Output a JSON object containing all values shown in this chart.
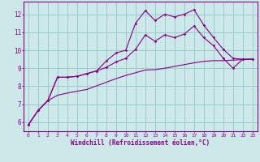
{
  "xlabel": "Windchill (Refroidissement éolien,°C)",
  "xlim": [
    -0.5,
    23.5
  ],
  "ylim": [
    5.5,
    12.7
  ],
  "yticks": [
    6,
    7,
    8,
    9,
    10,
    11,
    12
  ],
  "xticks": [
    0,
    1,
    2,
    3,
    4,
    5,
    6,
    7,
    8,
    9,
    10,
    11,
    12,
    13,
    14,
    15,
    16,
    17,
    18,
    19,
    20,
    21,
    22,
    23
  ],
  "background_color": "#cce8e8",
  "line_color": "#880088",
  "grid_color": "#99cccc",
  "curve1_y": [
    5.85,
    6.65,
    7.2,
    8.5,
    8.5,
    8.55,
    8.7,
    8.85,
    9.4,
    9.85,
    10.0,
    11.5,
    12.2,
    11.65,
    12.0,
    11.85,
    12.0,
    12.25,
    11.4,
    10.7,
    10.05,
    9.55,
    9.5,
    9.5
  ],
  "curve2_y": [
    5.85,
    6.65,
    7.2,
    8.5,
    8.5,
    8.55,
    8.7,
    8.85,
    9.05,
    9.35,
    9.55,
    10.05,
    10.85,
    10.5,
    10.85,
    10.7,
    10.9,
    11.35,
    10.7,
    10.25,
    9.55,
    9.0,
    9.5,
    9.5
  ],
  "curve3_y": [
    5.85,
    6.65,
    7.2,
    7.5,
    7.62,
    7.72,
    7.82,
    8.02,
    8.22,
    8.42,
    8.6,
    8.75,
    8.9,
    8.92,
    9.0,
    9.1,
    9.2,
    9.3,
    9.38,
    9.42,
    9.42,
    9.45,
    9.48,
    9.5
  ]
}
